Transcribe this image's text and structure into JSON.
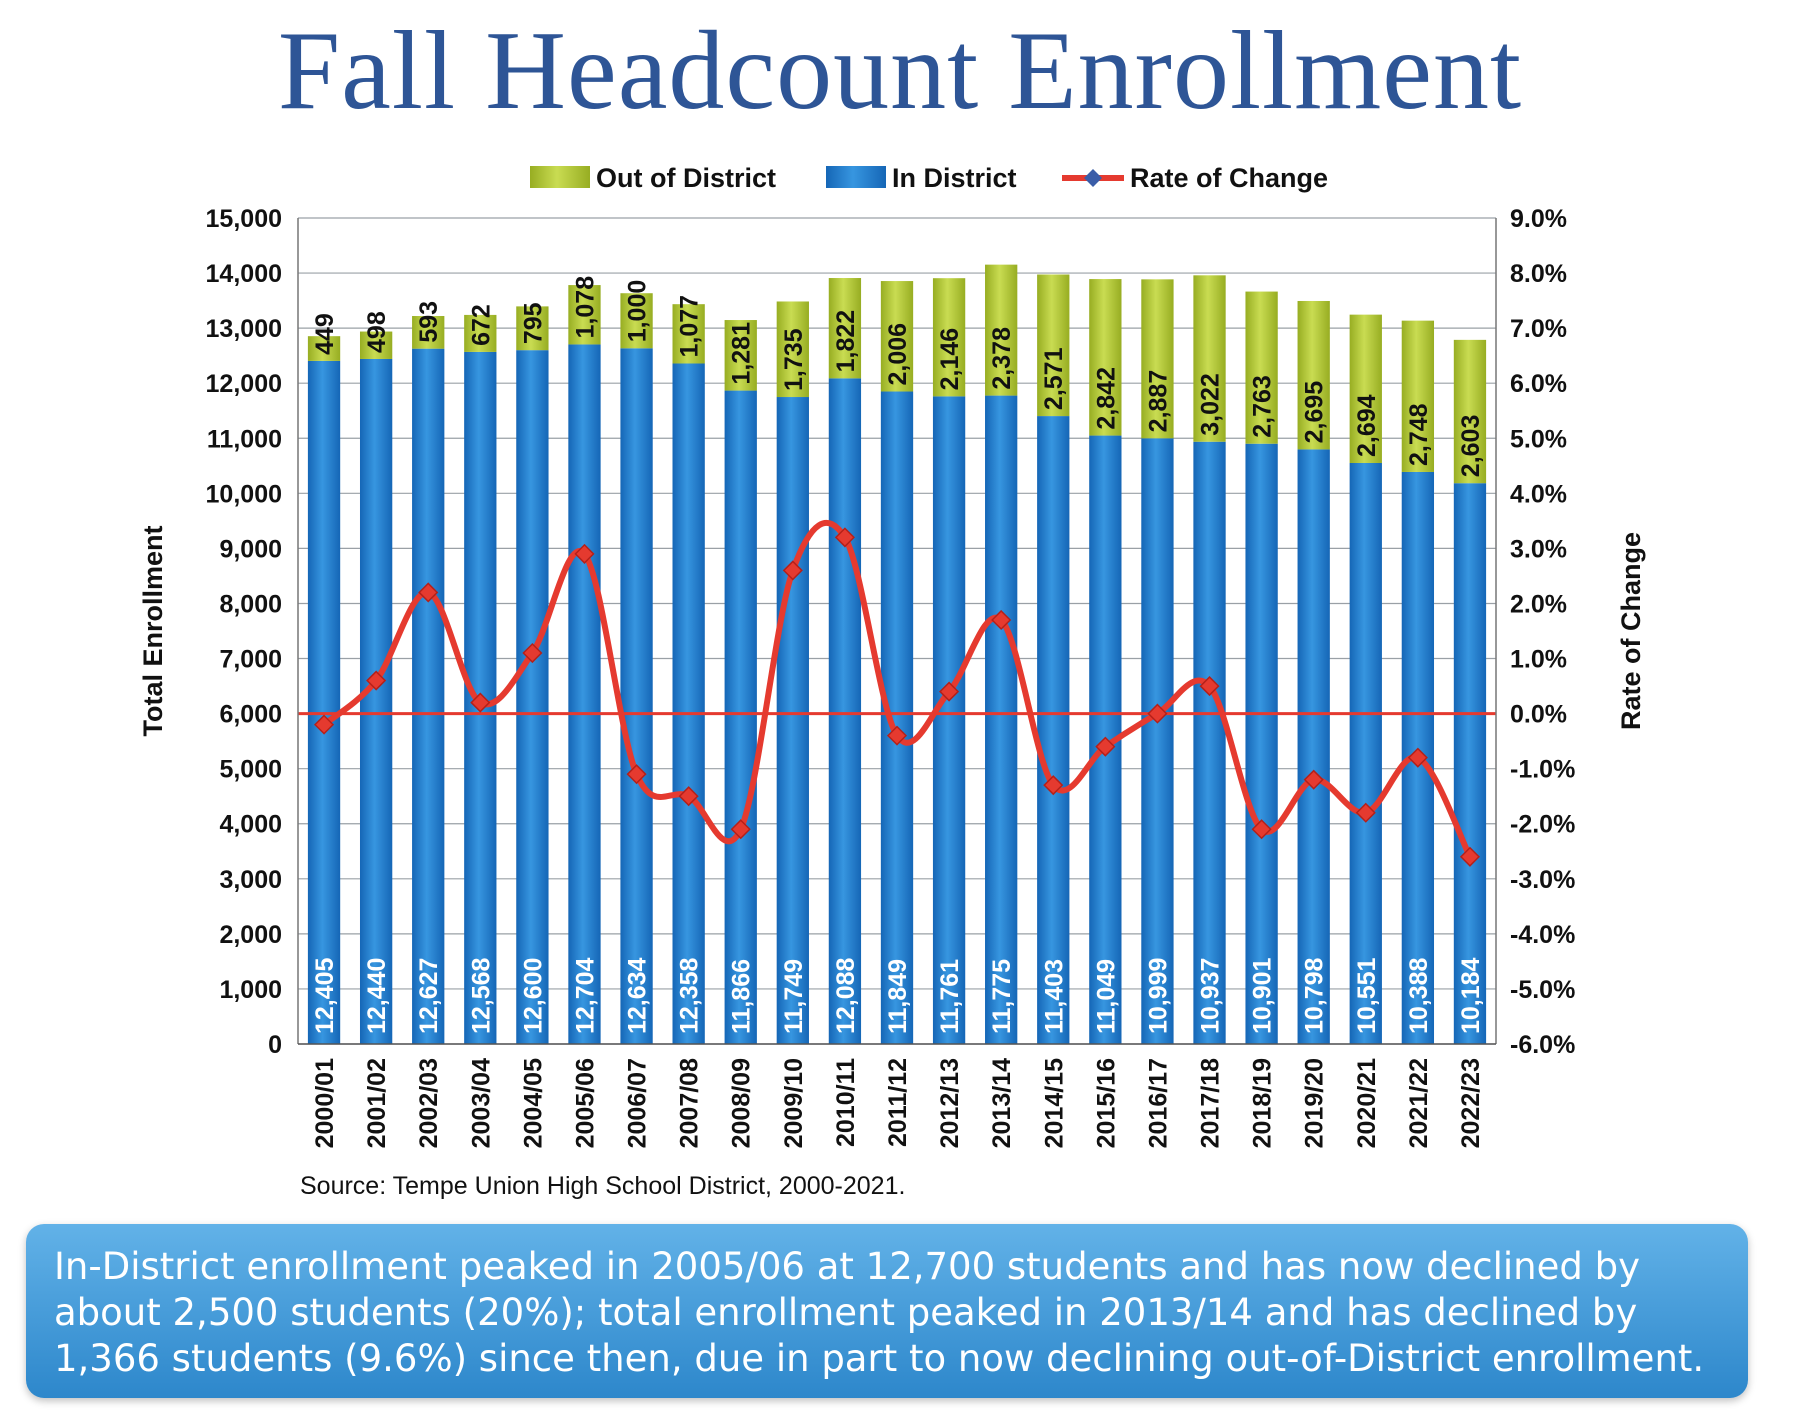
{
  "title": "Fall Headcount Enrollment",
  "source": "Source: Tempe Union High School District, 2000-2021.",
  "callout": "In-District enrollment peaked in 2005/06 at 12,700 students and has now declined by about 2,500 students (20%); total enrollment peaked in 2013/14 and has declined by 1,366 students (9.6%) since then, due in part to now declining out-of-District enrollment.",
  "colors": {
    "title": "#2e5596",
    "in_district": "#1f7fd0",
    "out_district": "#b8cf3c",
    "rate": "#e53a2f",
    "callout": "#3d95d6"
  },
  "chart_data": {
    "type": "bar",
    "stacked": true,
    "categories": [
      "2000/01",
      "2001/02",
      "2002/03",
      "2003/04",
      "2004/05",
      "2005/06",
      "2006/07",
      "2007/08",
      "2008/09",
      "2009/10",
      "2010/11",
      "2011/12",
      "2012/13",
      "2013/14",
      "2014/15",
      "2015/16",
      "2016/17",
      "2017/18",
      "2018/19",
      "2019/20",
      "2020/21",
      "2021/22",
      "2022/23"
    ],
    "series": [
      {
        "name": "In District",
        "labels": [
          "12,405",
          "12,440",
          "12,627",
          "12,568",
          "12,600",
          "12,704",
          "12,634",
          "12,358",
          "11,866",
          "11,749",
          "12,088",
          "11,849",
          "11,761",
          "11,775",
          "11,403",
          "11,049",
          "10,999",
          "10,937",
          "10,901",
          "10,798",
          "10,551",
          "10,388",
          "10,184"
        ],
        "values": [
          12405,
          12440,
          12627,
          12568,
          12600,
          12704,
          12634,
          12358,
          11866,
          11749,
          12088,
          11849,
          11761,
          11775,
          11403,
          11049,
          10999,
          10937,
          10901,
          10798,
          10551,
          10388,
          10184
        ]
      },
      {
        "name": "Out of District",
        "labels": [
          "449",
          "498",
          "593",
          "672",
          "795",
          "1,078",
          "1,000",
          "1,077",
          "1,281",
          "1,735",
          "1,822",
          "2,006",
          "2,146",
          "2,378",
          "2,571",
          "2,842",
          "2,887",
          "3,022",
          "2,763",
          "2,695",
          "2,694",
          "2,748",
          "2,603"
        ],
        "values": [
          449,
          498,
          593,
          672,
          795,
          1078,
          1000,
          1077,
          1281,
          1735,
          1822,
          2006,
          2146,
          2378,
          2571,
          2842,
          2887,
          3022,
          2763,
          2695,
          2694,
          2748,
          2603
        ]
      }
    ],
    "line": {
      "name": "Rate of Change",
      "values": [
        -0.2,
        0.6,
        2.2,
        0.2,
        1.1,
        2.9,
        -1.1,
        -1.5,
        -2.1,
        2.6,
        3.2,
        -0.4,
        0.4,
        1.7,
        -1.3,
        -0.6,
        0.0,
        0.5,
        -2.1,
        -1.2,
        -1.8,
        -0.8,
        -2.6
      ]
    },
    "legend": [
      "Out of District",
      "In District",
      "Rate of Change"
    ],
    "ylabel": "Total Enrollment",
    "y2label": "Rate of Change",
    "ylim": [
      0,
      15000
    ],
    "y2lim": [
      -6.0,
      9.0
    ],
    "yticks": [
      "0",
      "1,000",
      "2,000",
      "3,000",
      "4,000",
      "5,000",
      "6,000",
      "7,000",
      "8,000",
      "9,000",
      "10,000",
      "11,000",
      "12,000",
      "13,000",
      "14,000",
      "15,000"
    ],
    "y2ticks": [
      "-6.0%",
      "-5.0%",
      "-4.0%",
      "-3.0%",
      "-2.0%",
      "-1.0%",
      "0.0%",
      "1.0%",
      "2.0%",
      "3.0%",
      "4.0%",
      "5.0%",
      "6.0%",
      "7.0%",
      "8.0%",
      "9.0%"
    ],
    "grid": true
  }
}
